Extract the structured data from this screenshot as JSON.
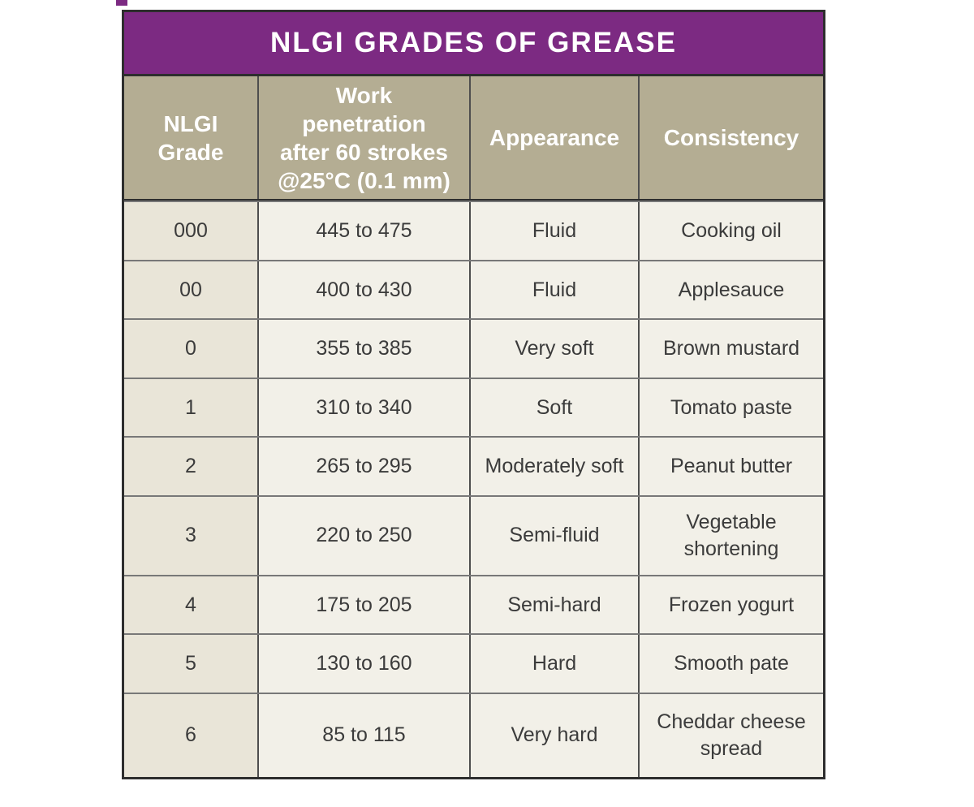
{
  "title": "NLGI GRADES OF GREASE",
  "colors": {
    "title_bg": "#7c2a82",
    "header_bg": "#b4ad93",
    "grade_column_bg": "#e9e5d8",
    "cell_bg": "#f2f0e8",
    "outer_border": "#2e2e2e",
    "row_divider": "#787878",
    "header_text": "#ffffff",
    "body_text": "#3b3b3b"
  },
  "table": {
    "headers": {
      "grade": "NLGI\nGrade",
      "penetration": "Work\npenetration\nafter 60 strokes\n@25°C (0.1 mm)",
      "appearance": "Appearance",
      "consistency": "Consistency"
    },
    "rows": [
      {
        "grade": "000",
        "penetration": "445 to 475",
        "appearance": "Fluid",
        "consistency": "Cooking oil"
      },
      {
        "grade": "00",
        "penetration": "400 to 430",
        "appearance": "Fluid",
        "consistency": "Applesauce"
      },
      {
        "grade": "0",
        "penetration": "355 to 385",
        "appearance": "Very soft",
        "consistency": "Brown mustard"
      },
      {
        "grade": "1",
        "penetration": "310 to 340",
        "appearance": "Soft",
        "consistency": "Tomato paste"
      },
      {
        "grade": "2",
        "penetration": "265 to 295",
        "appearance": "Moderately soft",
        "consistency": "Peanut butter"
      },
      {
        "grade": "3",
        "penetration": "220 to 250",
        "appearance": "Semi-fluid",
        "consistency": "Vegetable\nshortening"
      },
      {
        "grade": "4",
        "penetration": "175 to 205",
        "appearance": "Semi-hard",
        "consistency": "Frozen yogurt"
      },
      {
        "grade": "5",
        "penetration": "130 to 160",
        "appearance": "Hard",
        "consistency": "Smooth pate"
      },
      {
        "grade": "6",
        "penetration": "85 to 115",
        "appearance": "Very hard",
        "consistency": "Cheddar cheese\nspread"
      }
    ]
  },
  "chart_data": {
    "type": "table",
    "title": "NLGI GRADES OF GREASE",
    "columns": [
      "NLGI Grade",
      "Work penetration after 60 strokes @25°C (0.1 mm)",
      "Appearance",
      "Consistency"
    ],
    "rows": [
      [
        "000",
        "445 to 475",
        "Fluid",
        "Cooking oil"
      ],
      [
        "00",
        "400 to 430",
        "Fluid",
        "Applesauce"
      ],
      [
        "0",
        "355 to 385",
        "Very soft",
        "Brown mustard"
      ],
      [
        "1",
        "310 to 340",
        "Soft",
        "Tomato paste"
      ],
      [
        "2",
        "265 to 295",
        "Moderately soft",
        "Peanut butter"
      ],
      [
        "3",
        "220 to 250",
        "Semi-fluid",
        "Vegetable shortening"
      ],
      [
        "4",
        "175 to 205",
        "Semi-hard",
        "Frozen yogurt"
      ],
      [
        "5",
        "130 to 160",
        "Hard",
        "Smooth pate"
      ],
      [
        "6",
        "85 to 115",
        "Very hard",
        "Cheddar cheese spread"
      ]
    ]
  }
}
